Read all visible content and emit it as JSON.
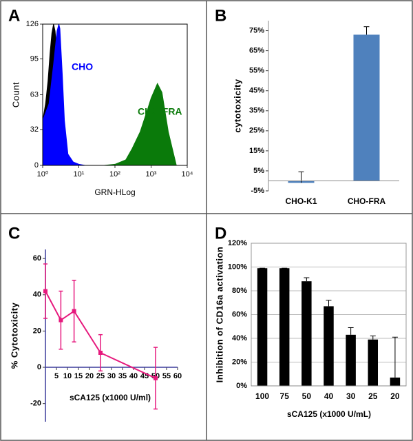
{
  "chart_data": [
    {
      "panel": "A",
      "type": "area",
      "xlabel": "GRN-HLog",
      "ylabel": "Count",
      "log_x": true,
      "xlim": [
        1,
        10000
      ],
      "xticks": [
        {
          "value": 1,
          "label": "10⁰"
        },
        {
          "value": 10,
          "label": "10¹"
        },
        {
          "value": 100,
          "label": "10²"
        },
        {
          "value": 1000,
          "label": "10³"
        },
        {
          "value": 10000,
          "label": "10⁴"
        }
      ],
      "ylim": [
        0,
        126
      ],
      "yticks": [
        0,
        32,
        63,
        95,
        126
      ],
      "series": [
        {
          "color": "#000000",
          "x": [
            1,
            1.2,
            1.4,
            1.6,
            1.8,
            2,
            2.2,
            2.5,
            2.8,
            3.2,
            3.6,
            4
          ],
          "values": [
            40,
            55,
            75,
            100,
            118,
            126,
            120,
            100,
            70,
            35,
            10,
            0
          ]
        },
        {
          "name": "CHO",
          "color": "#0000ff",
          "x": [
            1,
            1.5,
            2,
            2.5,
            2.8,
            3,
            3.5,
            4,
            5,
            7,
            10,
            15
          ],
          "values": [
            40,
            55,
            90,
            120,
            126,
            122,
            80,
            40,
            10,
            3,
            1,
            0
          ]
        },
        {
          "name": "CHO-FRA",
          "color": "#0a7a0a",
          "x": [
            50,
            100,
            200,
            300,
            500,
            800,
            1000,
            1500,
            2000,
            3000,
            5000
          ],
          "values": [
            0,
            1,
            5,
            15,
            30,
            50,
            60,
            73,
            65,
            30,
            0
          ]
        }
      ]
    },
    {
      "panel": "B",
      "type": "bar",
      "ylabel": "cytotoxicity",
      "categories": [
        "CHO-K1",
        "CHO-FRA"
      ],
      "values": [
        -1,
        73
      ],
      "errors": [
        5.5,
        4
      ],
      "color": "#4f81bd",
      "ylim": [
        -5,
        80
      ],
      "yticks": [
        {
          "value": -5,
          "label": "-5%"
        },
        {
          "value": 5,
          "label": "5%"
        },
        {
          "value": 15,
          "label": "15%"
        },
        {
          "value": 25,
          "label": "25%"
        },
        {
          "value": 35,
          "label": "35%"
        },
        {
          "value": 45,
          "label": "45%"
        },
        {
          "value": 55,
          "label": "55%"
        },
        {
          "value": 65,
          "label": "65%"
        },
        {
          "value": 75,
          "label": "75%"
        }
      ]
    },
    {
      "panel": "C",
      "type": "line",
      "xlabel": "sCA125 (x1000 U/ml)",
      "ylabel": "% Cytotoxicity",
      "x": [
        0,
        7,
        13,
        25,
        50
      ],
      "values": [
        42,
        26,
        31,
        8,
        -6
      ],
      "errors": [
        15,
        16,
        17,
        10,
        17
      ],
      "color": "#e6197d",
      "xlim": [
        0,
        60
      ],
      "xticks": [
        5,
        10,
        15,
        20,
        25,
        30,
        35,
        40,
        45,
        50,
        55,
        60
      ],
      "ylim": [
        -30,
        65
      ],
      "yticks": [
        -20,
        0,
        20,
        40,
        60
      ]
    },
    {
      "panel": "D",
      "type": "bar",
      "ylabel": "Inhibition of CD16a activation",
      "xlabel": "sCA125 (x1000 U/mL)",
      "categories": [
        "100",
        "75",
        "50",
        "40",
        "30",
        "25",
        "20"
      ],
      "values": [
        99,
        99,
        88,
        67,
        43,
        39,
        7
      ],
      "errors": [
        0,
        0,
        3,
        5,
        6,
        3,
        34
      ],
      "color": "#000000",
      "ylim": [
        0,
        120
      ],
      "grid": true,
      "yticks": [
        {
          "value": 0,
          "label": "0%"
        },
        {
          "value": 20,
          "label": "20%"
        },
        {
          "value": 40,
          "label": "40%"
        },
        {
          "value": 60,
          "label": "60%"
        },
        {
          "value": 80,
          "label": "80%"
        },
        {
          "value": 100,
          "label": "100%"
        },
        {
          "value": 120,
          "label": "120%"
        }
      ]
    }
  ]
}
